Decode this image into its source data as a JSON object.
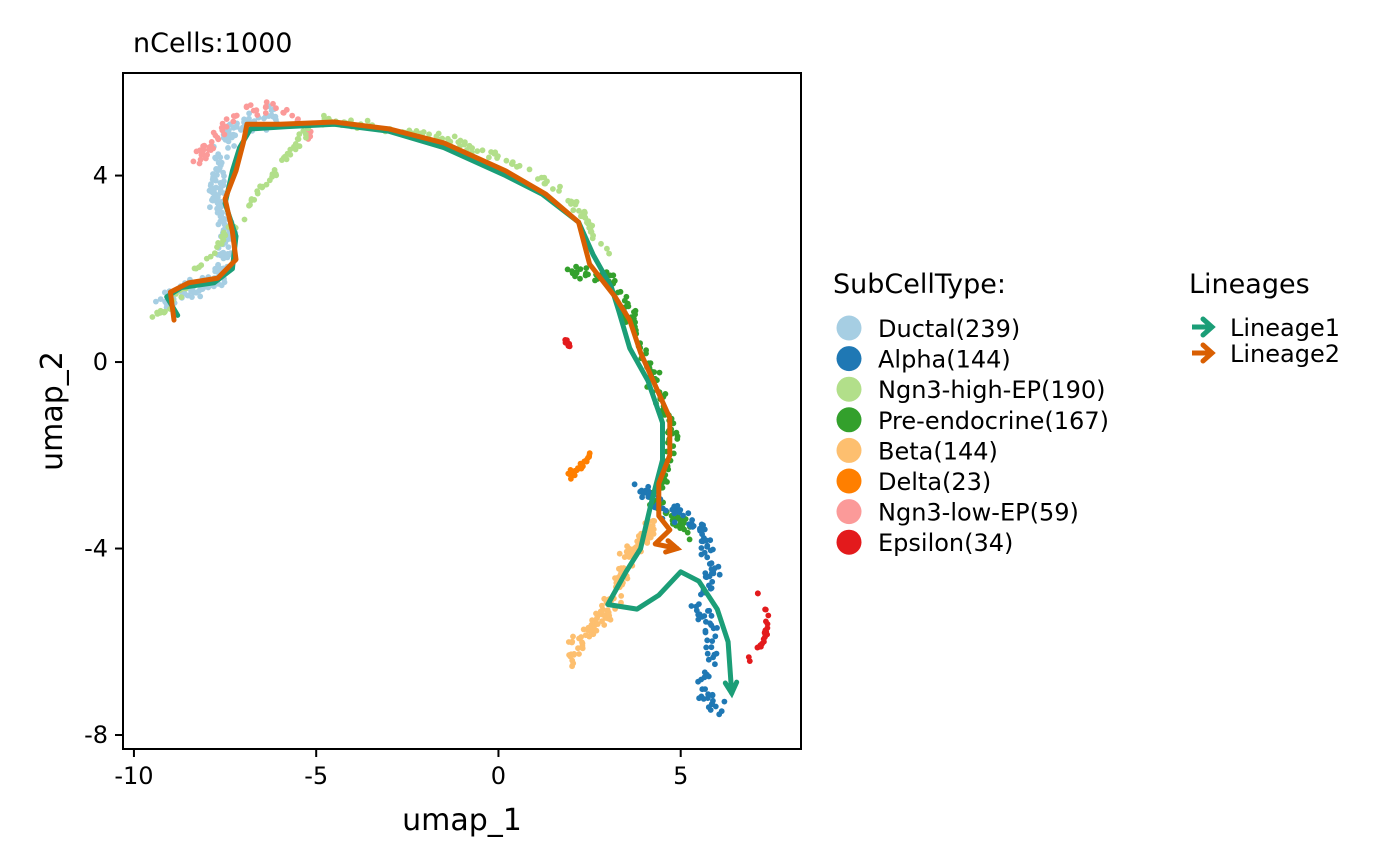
{
  "chart_data": {
    "type": "scatter",
    "title": "nCells:1000",
    "xlabel": "umap_1",
    "ylabel": "umap_2",
    "xlim": [
      -10.3,
      8.3
    ],
    "ylim": [
      -8.3,
      6.2
    ],
    "x_ticks": [
      {
        "value": -10,
        "label": "-10"
      },
      {
        "value": -5,
        "label": "-5"
      },
      {
        "value": 0,
        "label": "0"
      },
      {
        "value": 5,
        "label": "5"
      }
    ],
    "y_ticks": [
      {
        "value": 4,
        "label": "4"
      },
      {
        "value": 0,
        "label": "0"
      },
      {
        "value": -4,
        "label": "-4"
      },
      {
        "value": -8,
        "label": "-8"
      }
    ],
    "grid": false,
    "legend_position": "right",
    "colors": {
      "Ductal": "#a6cee3",
      "Alpha": "#1f78b4",
      "Ngn3-high-EP": "#b2df8a",
      "Pre-endocrine": "#33a02c",
      "Beta": "#fdbf6f",
      "Delta": "#ff7f00",
      "Ngn3-low-EP": "#fb9a99",
      "Epsilon": "#e31a1c",
      "Lineage1": "#1b9e77",
      "Lineage2": "#d95f02"
    },
    "legend": {
      "title": "SubCellType:",
      "items": [
        {
          "label": "Ductal(239)",
          "key": "Ductal"
        },
        {
          "label": "Alpha(144)",
          "key": "Alpha"
        },
        {
          "label": "Ngn3-high-EP(190)",
          "key": "Ngn3-high-EP"
        },
        {
          "label": "Pre-endocrine(167)",
          "key": "Pre-endocrine"
        },
        {
          "label": "Beta(144)",
          "key": "Beta"
        },
        {
          "label": "Delta(23)",
          "key": "Delta"
        },
        {
          "label": "Ngn3-low-EP(59)",
          "key": "Ngn3-low-EP"
        },
        {
          "label": "Epsilon(34)",
          "key": "Epsilon"
        }
      ]
    },
    "lineage_legend": {
      "title": "Lineages",
      "items": [
        {
          "label": "Lineage1",
          "key": "Lineage1"
        },
        {
          "label": "Lineage2",
          "key": "Lineage2"
        }
      ]
    },
    "clusters": [
      {
        "key": "Ductal",
        "count": 239,
        "path": [
          [
            -9.2,
            1.3
          ],
          [
            -8.5,
            1.5
          ],
          [
            -7.6,
            1.8
          ],
          [
            -7.4,
            2.8
          ],
          [
            -7.8,
            3.6
          ],
          [
            -7.6,
            4.4
          ],
          [
            -7.3,
            5.0
          ],
          [
            -6.5,
            5.2
          ],
          [
            -6.0,
            5.3
          ]
        ],
        "spread": 0.32
      },
      {
        "key": "Ngn3-low-EP",
        "count": 59,
        "path": [
          [
            -8.4,
            4.2
          ],
          [
            -7.6,
            5.0
          ],
          [
            -6.8,
            5.5
          ],
          [
            -5.8,
            5.3
          ],
          [
            -5.0,
            4.9
          ]
        ],
        "spread": 0.25
      },
      {
        "key": "Ngn3-high-EP",
        "count": 190,
        "path": [
          [
            -9.5,
            1.0
          ],
          [
            -9.0,
            1.2
          ],
          [
            -5.0,
            5.2
          ],
          [
            -3.0,
            5.0
          ],
          [
            -1.0,
            4.7
          ],
          [
            0.5,
            4.2
          ],
          [
            1.5,
            3.8
          ],
          [
            2.3,
            3.2
          ],
          [
            3.0,
            2.3
          ]
        ],
        "spread": 0.16
      },
      {
        "key": "Pre-endocrine",
        "count": 167,
        "path": [
          [
            1.9,
            2.0
          ],
          [
            3.0,
            1.8
          ],
          [
            3.5,
            1.2
          ],
          [
            3.9,
            0.3
          ],
          [
            4.3,
            -0.5
          ],
          [
            4.8,
            -1.5
          ],
          [
            4.6,
            -2.4
          ],
          [
            4.2,
            -3.0
          ],
          [
            5.3,
            -3.7
          ]
        ],
        "spread": 0.28
      },
      {
        "key": "Alpha",
        "count": 144,
        "path": [
          [
            3.8,
            -2.7
          ],
          [
            5.6,
            -3.6
          ],
          [
            5.9,
            -4.5
          ],
          [
            5.5,
            -5.3
          ],
          [
            5.9,
            -5.9
          ],
          [
            5.8,
            -6.6
          ],
          [
            5.6,
            -7.1
          ],
          [
            6.1,
            -7.5
          ]
        ],
        "spread": 0.28
      },
      {
        "key": "Beta",
        "count": 144,
        "path": [
          [
            4.3,
            -3.5
          ],
          [
            3.6,
            -4.1
          ],
          [
            3.3,
            -4.8
          ],
          [
            2.8,
            -5.5
          ],
          [
            2.2,
            -6.0
          ],
          [
            1.9,
            -6.4
          ]
        ],
        "spread": 0.3
      },
      {
        "key": "Delta",
        "count": 23,
        "path": [
          [
            1.9,
            -2.5
          ],
          [
            2.3,
            -2.2
          ],
          [
            2.6,
            -2.0
          ]
        ],
        "spread": 0.13
      },
      {
        "key": "Epsilon",
        "count": 34,
        "path": [
          [
            1.8,
            0.5
          ],
          [
            2.0,
            0.3
          ]
        ],
        "spread": 0.09,
        "extra_path": [
          [
            7.1,
            -4.9
          ],
          [
            7.4,
            -5.4
          ],
          [
            7.3,
            -6.0
          ],
          [
            6.9,
            -6.4
          ]
        ],
        "extra_count": 24
      }
    ],
    "lineages": [
      {
        "name": "Lineage1",
        "key": "Lineage1",
        "points": [
          [
            -8.8,
            1.0
          ],
          [
            -9.1,
            1.4
          ],
          [
            -8.7,
            1.6
          ],
          [
            -7.8,
            1.7
          ],
          [
            -7.3,
            2.0
          ],
          [
            -7.2,
            2.7
          ],
          [
            -7.5,
            3.4
          ],
          [
            -7.3,
            4.1
          ],
          [
            -7.1,
            4.6
          ],
          [
            -6.8,
            5.0
          ],
          [
            -5.8,
            5.05
          ],
          [
            -4.5,
            5.1
          ],
          [
            -3.0,
            4.95
          ],
          [
            -1.5,
            4.6
          ],
          [
            0.2,
            4.0
          ],
          [
            1.2,
            3.6
          ],
          [
            2.2,
            3.0
          ],
          [
            2.6,
            2.3
          ],
          [
            3.1,
            1.6
          ],
          [
            3.3,
            1.1
          ],
          [
            3.6,
            0.3
          ],
          [
            4.1,
            -0.4
          ],
          [
            4.5,
            -1.3
          ],
          [
            4.5,
            -2.1
          ],
          [
            4.2,
            -3.0
          ],
          [
            3.9,
            -4.0
          ],
          [
            3.5,
            -4.5
          ],
          [
            3.0,
            -5.2
          ],
          [
            3.8,
            -5.3
          ],
          [
            4.4,
            -5.0
          ],
          [
            5.0,
            -4.5
          ],
          [
            5.5,
            -4.7
          ],
          [
            6.0,
            -5.3
          ],
          [
            6.3,
            -6.0
          ],
          [
            6.4,
            -7.1
          ]
        ]
      },
      {
        "name": "Lineage2",
        "key": "Lineage2",
        "points": [
          [
            -8.9,
            0.9
          ],
          [
            -9.0,
            1.5
          ],
          [
            -8.5,
            1.7
          ],
          [
            -7.7,
            1.8
          ],
          [
            -7.2,
            2.2
          ],
          [
            -7.3,
            2.8
          ],
          [
            -7.5,
            3.5
          ],
          [
            -7.2,
            4.1
          ],
          [
            -7.0,
            4.7
          ],
          [
            -6.9,
            5.1
          ],
          [
            -6.0,
            5.1
          ],
          [
            -4.5,
            5.15
          ],
          [
            -3.0,
            5.0
          ],
          [
            -1.5,
            4.7
          ],
          [
            0.2,
            4.1
          ],
          [
            1.3,
            3.6
          ],
          [
            2.2,
            3.0
          ],
          [
            2.5,
            2.1
          ],
          [
            3.2,
            1.4
          ],
          [
            3.6,
            0.9
          ],
          [
            3.9,
            0.2
          ],
          [
            4.3,
            -0.5
          ],
          [
            4.7,
            -1.2
          ],
          [
            4.7,
            -2.0
          ],
          [
            4.4,
            -2.6
          ],
          [
            4.4,
            -3.3
          ],
          [
            4.7,
            -3.6
          ],
          [
            4.3,
            -3.9
          ],
          [
            4.9,
            -4.0
          ]
        ]
      }
    ]
  }
}
